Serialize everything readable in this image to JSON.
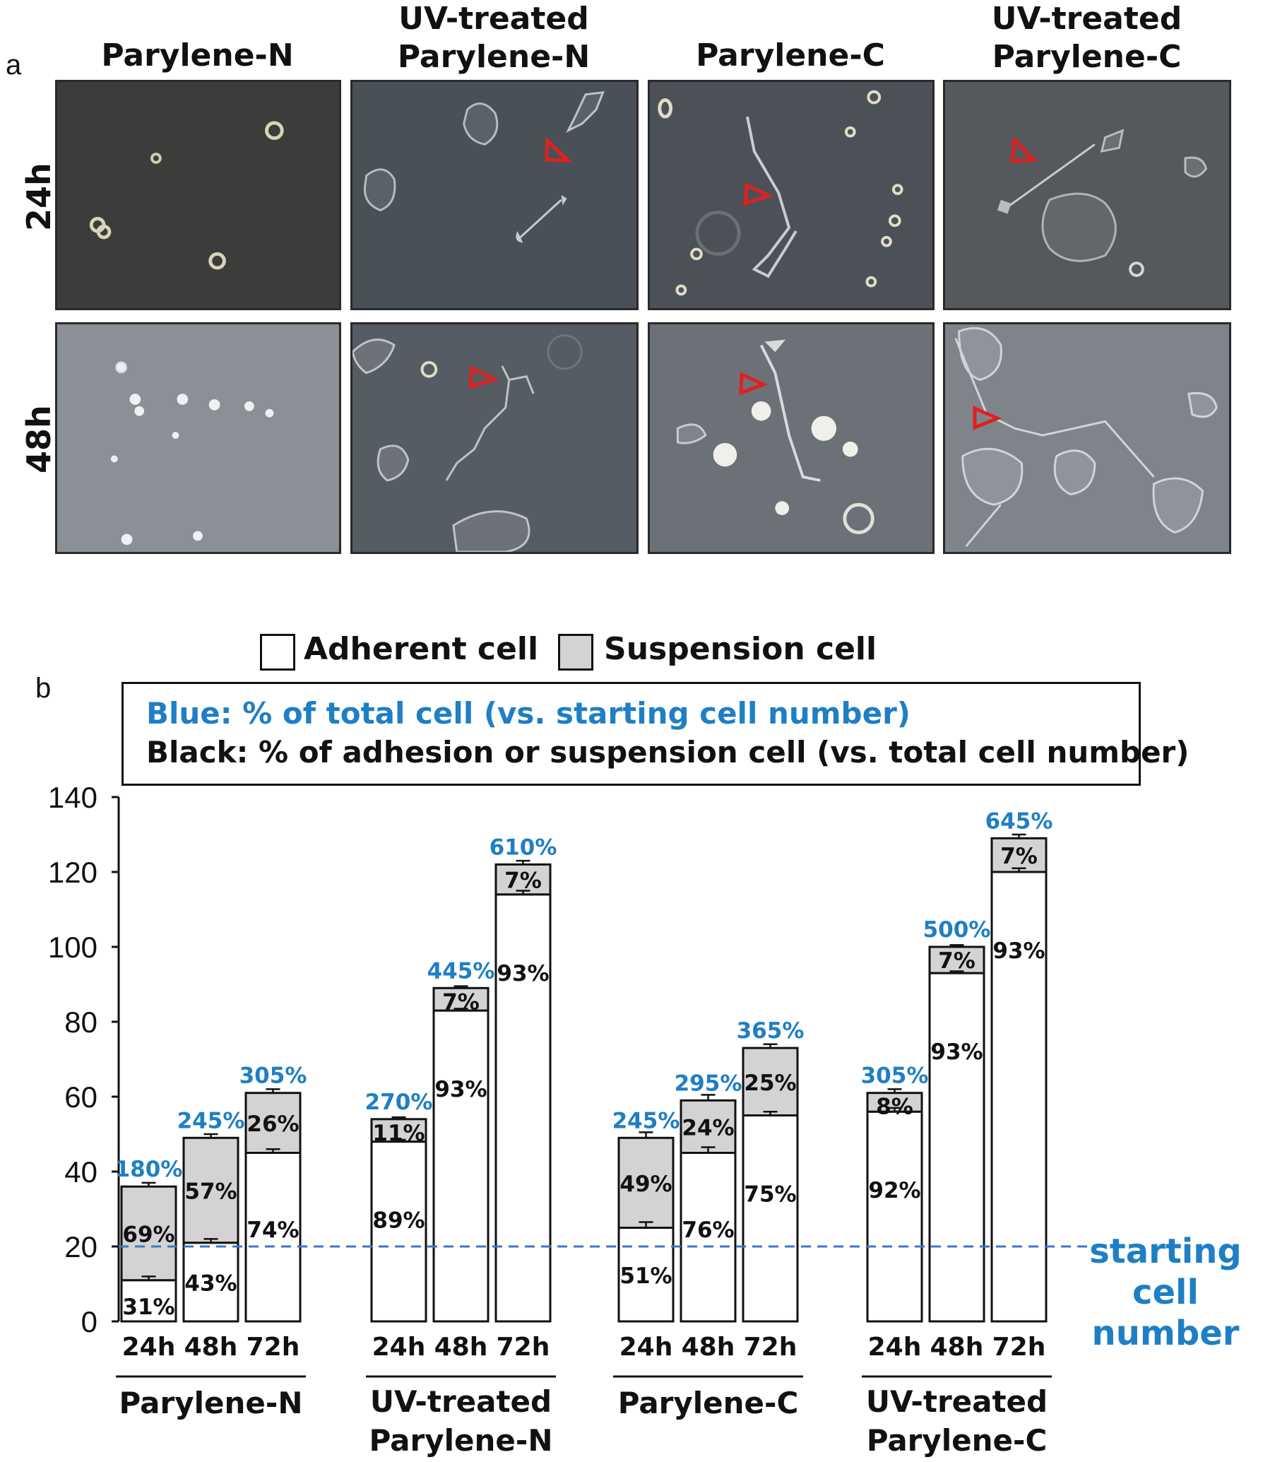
{
  "panel_a": {
    "label": "a",
    "columns": [
      {
        "title": "Parylene-N"
      },
      {
        "title": "UV-treated\nParylene-N"
      },
      {
        "title": "Parylene-C"
      },
      {
        "title": "UV-treated\nParylene-C"
      }
    ],
    "rows": [
      {
        "label": "24h"
      },
      {
        "label": "48h"
      }
    ],
    "arrow_color": "#e02020"
  },
  "panel_b": {
    "label": "b",
    "legend": [
      {
        "label": "Adherent cell",
        "color": "#ffffff"
      },
      {
        "label": "Suspension cell",
        "color": "#d3d3d3"
      }
    ],
    "info_lines": [
      {
        "text": "Blue: % of total cell (vs. starting cell number)",
        "color": "#1f7fc4"
      },
      {
        "text": "Black: % of adhesion or suspension cell (vs. total cell number)",
        "color": "#111111"
      }
    ],
    "baseline_label": "starting\ncell number",
    "blue_color": "#1f7fc4"
  },
  "chart_data": {
    "type": "bar",
    "stacked": true,
    "ylim": [
      0,
      140
    ],
    "yticks": [
      0,
      20,
      40,
      60,
      80,
      100,
      120,
      140
    ],
    "baseline": 20,
    "groups": [
      {
        "name": "Parylene-N",
        "bars": [
          {
            "time": "24h",
            "adherent": 11,
            "total": 36,
            "total_label": "180%",
            "adh_label": "31%",
            "sus_label": "69%",
            "err": 1
          },
          {
            "time": "48h",
            "adherent": 21,
            "total": 49,
            "total_label": "245%",
            "adh_label": "43%",
            "sus_label": "57%",
            "err": 1
          },
          {
            "time": "72h",
            "adherent": 45,
            "total": 61,
            "total_label": "305%",
            "adh_label": "74%",
            "sus_label": "26%",
            "err": 1
          }
        ]
      },
      {
        "name": "UV-treated Parylene-N",
        "bars": [
          {
            "time": "24h",
            "adherent": 48,
            "total": 54,
            "total_label": "270%",
            "adh_label": "89%",
            "sus_label": "11%",
            "err": 0.5
          },
          {
            "time": "48h",
            "adherent": 83,
            "total": 89,
            "total_label": "445%",
            "adh_label": "93%",
            "sus_label": "7%",
            "err": 0.5
          },
          {
            "time": "72h",
            "adherent": 114,
            "total": 122,
            "total_label": "610%",
            "adh_label": "93%",
            "sus_label": "7%",
            "err": 1
          }
        ]
      },
      {
        "name": "Parylene-C",
        "bars": [
          {
            "time": "24h",
            "adherent": 25,
            "total": 49,
            "total_label": "245%",
            "adh_label": "51%",
            "sus_label": "49%",
            "err": 1.5
          },
          {
            "time": "48h",
            "adherent": 45,
            "total": 59,
            "total_label": "295%",
            "adh_label": "76%",
            "sus_label": "24%",
            "err": 1.5
          },
          {
            "time": "72h",
            "adherent": 55,
            "total": 73,
            "total_label": "365%",
            "adh_label": "75%",
            "sus_label": "25%",
            "err": 1
          }
        ]
      },
      {
        "name": "UV-treated Parylene-C",
        "bars": [
          {
            "time": "24h",
            "adherent": 56,
            "total": 61,
            "total_label": "305%",
            "adh_label": "92%",
            "sus_label": "8%",
            "err": 1
          },
          {
            "time": "48h",
            "adherent": 93,
            "total": 100,
            "total_label": "500%",
            "adh_label": "93%",
            "sus_label": "7%",
            "err": 0.5
          },
          {
            "time": "72h",
            "adherent": 120,
            "total": 129,
            "total_label": "645%",
            "adh_label": "93%",
            "sus_label": "7%",
            "err": 1
          }
        ]
      }
    ],
    "group_labels": [
      "Parylene-N",
      "UV-treated\nParylene-N",
      "Parylene-C",
      "UV-treated\nParylene-C"
    ]
  }
}
